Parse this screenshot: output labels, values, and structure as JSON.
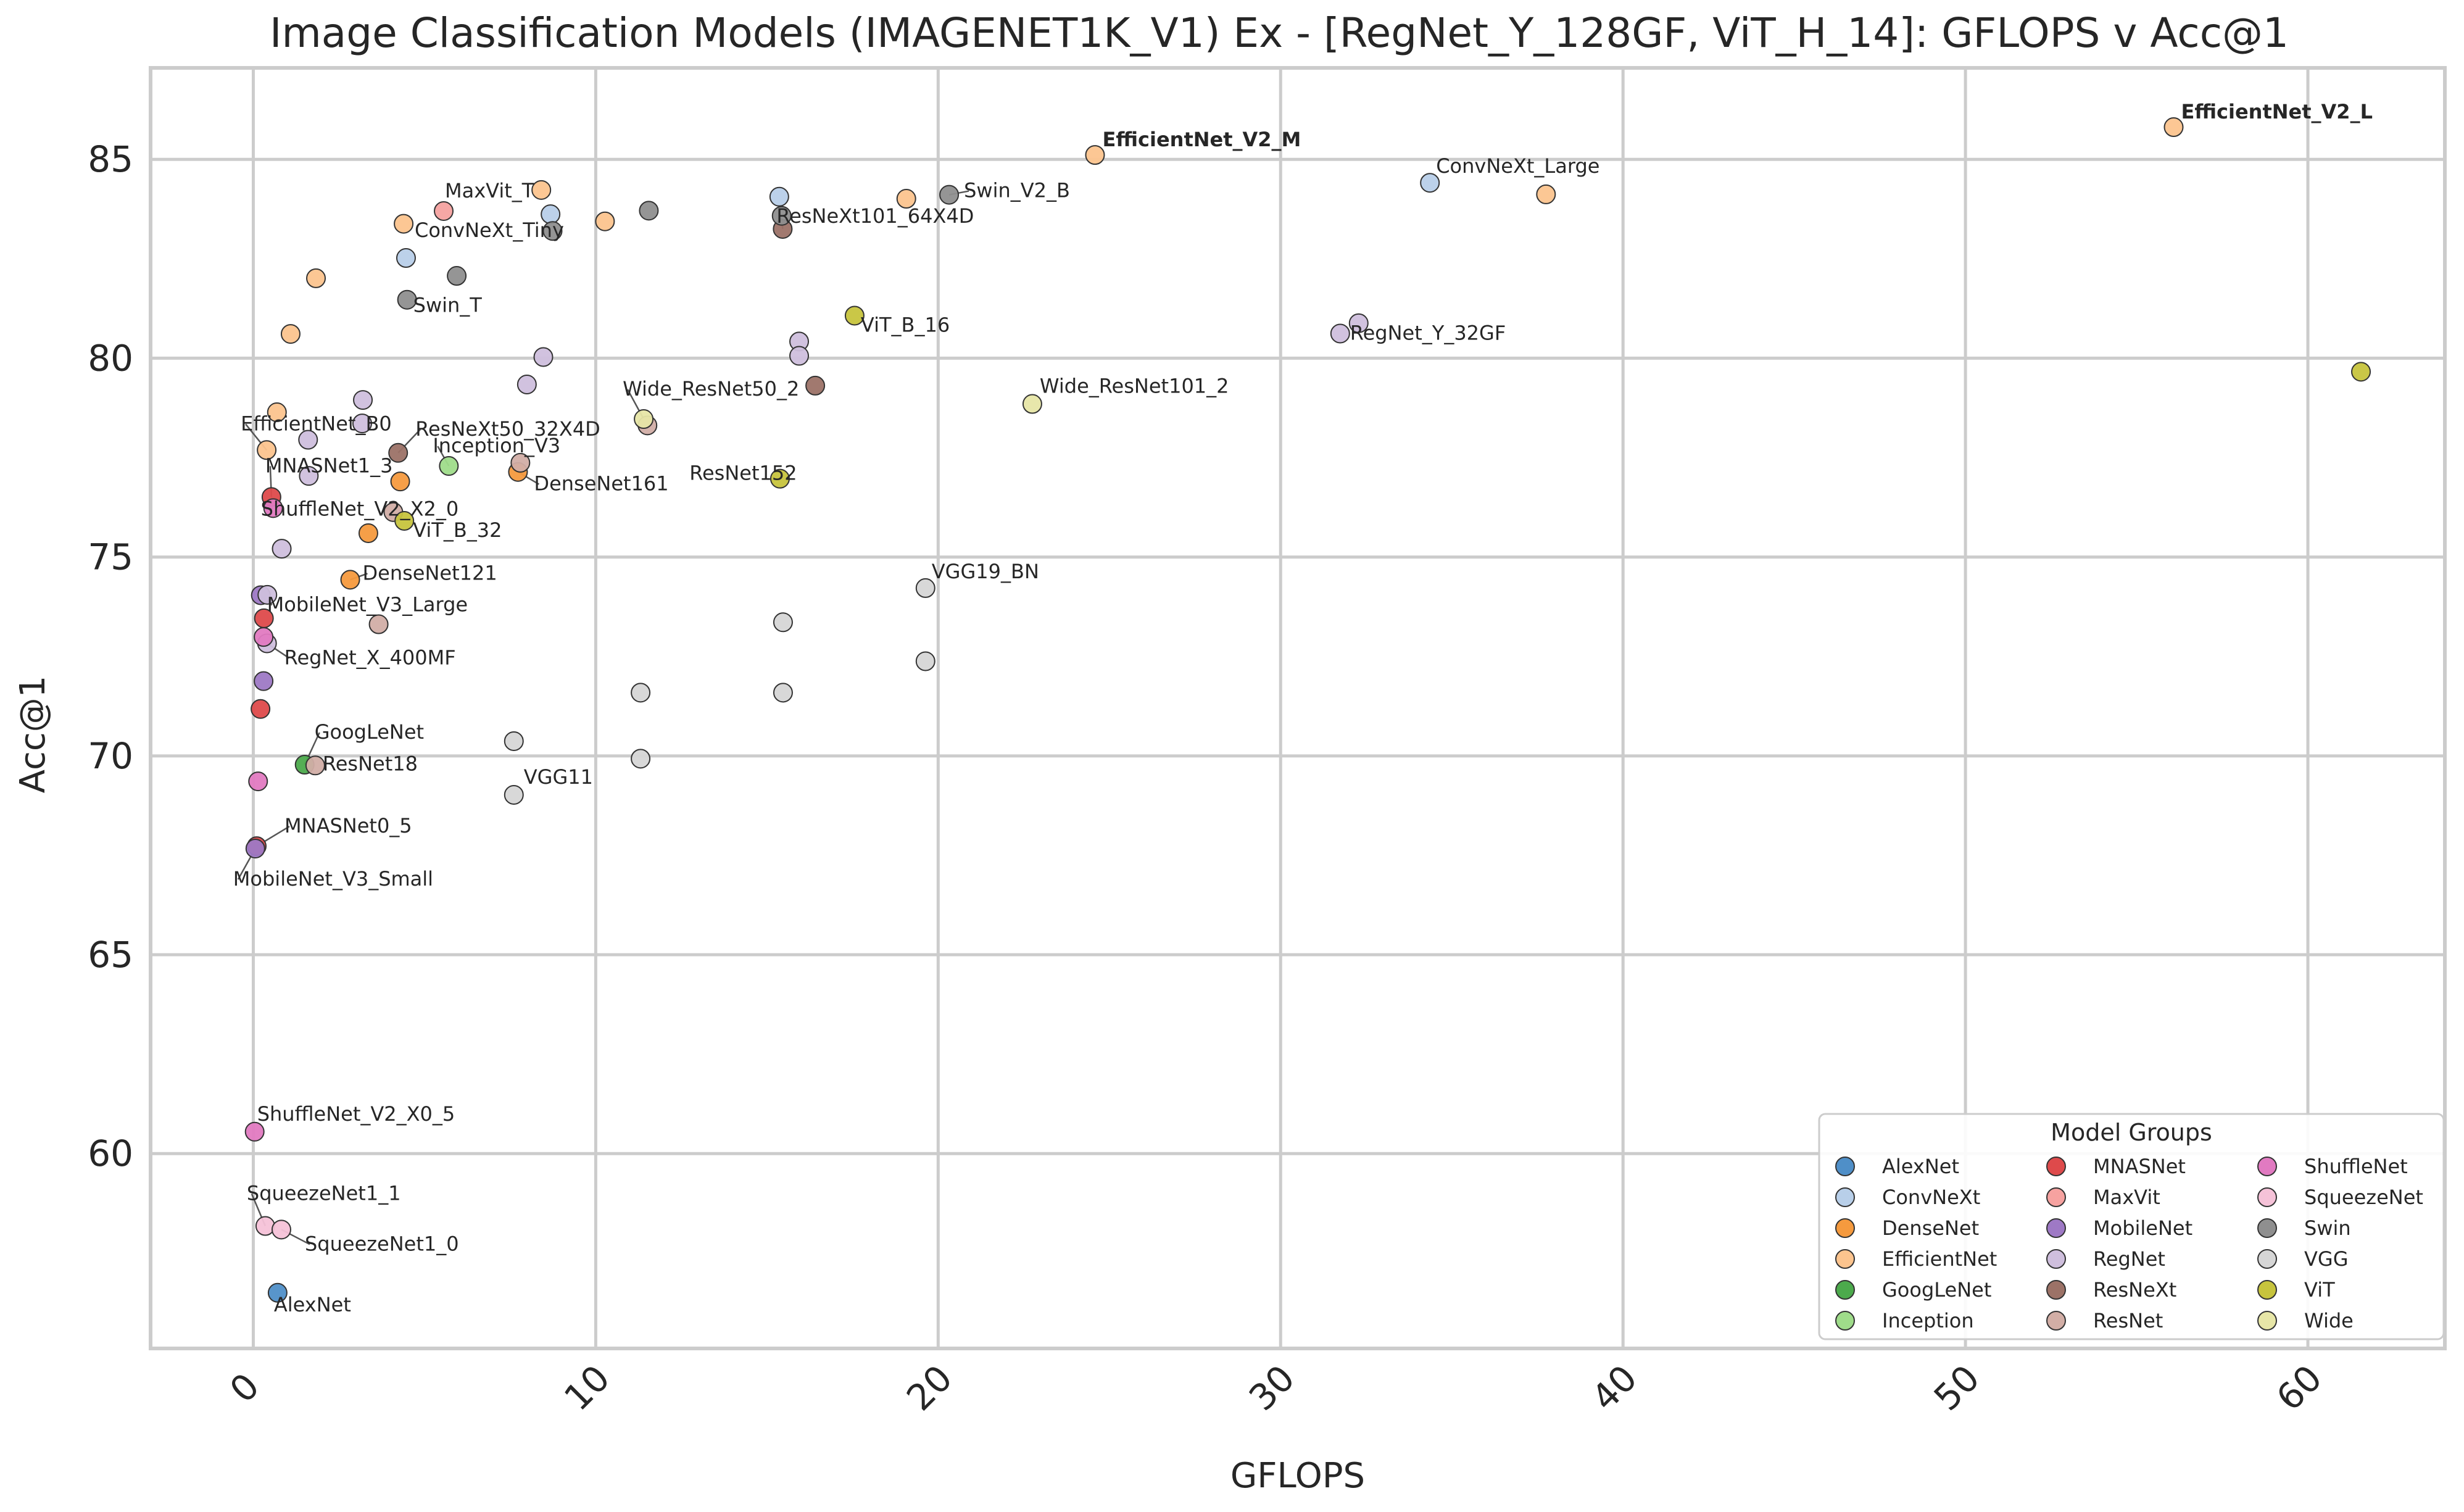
{
  "chart_data": {
    "type": "scatter",
    "title": "Image Classification Models (IMAGENET1K_V1) Ex - [RegNet_Y_128GF, ViT_H_14]: GFLOPS v Acc@1",
    "xlabel": "GFLOPS",
    "ylabel": "Acc@1",
    "xlim": [
      -3,
      64
    ],
    "ylim": [
      55.1,
      87.3
    ],
    "x_ticks": [
      "0",
      "10",
      "20",
      "30",
      "40",
      "50",
      "60"
    ],
    "y_ticks": [
      "60",
      "65",
      "70",
      "75",
      "80",
      "85"
    ],
    "grid": true,
    "legend": {
      "title": "Model Groups",
      "placement": "lower-right",
      "entries": [
        "AlexNet",
        "ConvNeXt",
        "DenseNet",
        "EfficientNet",
        "GoogLeNet",
        "Inception",
        "MNASNet",
        "MaxVit",
        "MobileNet",
        "RegNet",
        "ResNeXt",
        "ResNet",
        "ShuffleNet",
        "SqueezeNet",
        "Swin",
        "VGG",
        "ViT",
        "Wide"
      ]
    },
    "group_colors": {
      "AlexNet": "#4f8fc8",
      "ConvNeXt": "#b8cfe9",
      "DenseNet": "#f59a3e",
      "EfficientNet": "#fcc48e",
      "GoogLeNet": "#4caa4c",
      "Inception": "#9fdc8a",
      "MNASNet": "#de4a4b",
      "MaxVit": "#f6a2a0",
      "MobileNet": "#9e79c5",
      "RegNet": "#cfbfdd",
      "ResNeXt": "#9c7267",
      "ResNet": "#d2aea6",
      "ShuffleNet": "#e17ac1",
      "SqueezeNet": "#f5c2d8",
      "Swin": "#8f8f8f",
      "VGG": "#d6d6d6",
      "ViT": "#c7c43d",
      "Wide": "#e7e6a7"
    },
    "points": [
      {
        "group": "AlexNet",
        "x": 0.71,
        "y": 56.5,
        "label": "AlexNet"
      },
      {
        "group": "ConvNeXt",
        "x": 4.46,
        "y": 82.52,
        "label": "ConvNeXt_Tiny"
      },
      {
        "group": "ConvNeXt",
        "x": 8.68,
        "y": 83.62,
        "label": ""
      },
      {
        "group": "ConvNeXt",
        "x": 15.36,
        "y": 84.06,
        "label": ""
      },
      {
        "group": "ConvNeXt",
        "x": 34.36,
        "y": 84.41,
        "label": "ConvNeXt_Large"
      },
      {
        "group": "DenseNet",
        "x": 2.83,
        "y": 74.43,
        "label": "DenseNet121"
      },
      {
        "group": "DenseNet",
        "x": 3.36,
        "y": 75.6,
        "label": ""
      },
      {
        "group": "DenseNet",
        "x": 4.29,
        "y": 76.9,
        "label": ""
      },
      {
        "group": "DenseNet",
        "x": 7.73,
        "y": 77.14,
        "label": "DenseNet161"
      },
      {
        "group": "EfficientNet",
        "x": 0.39,
        "y": 77.69,
        "label": "EfficientNet_B0"
      },
      {
        "group": "EfficientNet",
        "x": 0.69,
        "y": 78.64,
        "label": ""
      },
      {
        "group": "EfficientNet",
        "x": 1.09,
        "y": 80.61,
        "label": ""
      },
      {
        "group": "EfficientNet",
        "x": 1.83,
        "y": 82.01,
        "label": ""
      },
      {
        "group": "EfficientNet",
        "x": 4.39,
        "y": 83.38,
        "label": ""
      },
      {
        "group": "EfficientNet",
        "x": 10.27,
        "y": 83.44,
        "label": ""
      },
      {
        "group": "EfficientNet",
        "x": 8.41,
        "y": 84.23,
        "label": ""
      },
      {
        "group": "EfficientNet",
        "x": 19.07,
        "y": 84.01,
        "label": ""
      },
      {
        "group": "EfficientNet",
        "x": 24.58,
        "y": 85.11,
        "label": "EfficientNet_V2_M",
        "bold": true
      },
      {
        "group": "EfficientNet",
        "x": 37.75,
        "y": 84.12,
        "label": ""
      },
      {
        "group": "EfficientNet",
        "x": 56.08,
        "y": 85.81,
        "label": "EfficientNet_V2_L",
        "bold": true
      },
      {
        "group": "GoogLeNet",
        "x": 1.5,
        "y": 69.78,
        "label": "GoogLeNet"
      },
      {
        "group": "Inception",
        "x": 5.71,
        "y": 77.29,
        "label": "Inception_V3"
      },
      {
        "group": "MNASNet",
        "x": 0.1,
        "y": 67.73,
        "label": "MNASNet0_5"
      },
      {
        "group": "MNASNet",
        "x": 0.21,
        "y": 71.18,
        "label": ""
      },
      {
        "group": "MNASNet",
        "x": 0.31,
        "y": 73.46,
        "label": ""
      },
      {
        "group": "MNASNet",
        "x": 0.53,
        "y": 76.51,
        "label": "MNASNet1_3"
      },
      {
        "group": "MaxVit",
        "x": 5.56,
        "y": 83.7,
        "label": "MaxVit_T"
      },
      {
        "group": "MobileNet",
        "x": 0.06,
        "y": 67.67,
        "label": "MobileNet_V3_Small"
      },
      {
        "group": "MobileNet",
        "x": 0.22,
        "y": 74.04,
        "label": "MobileNet_V3_Large"
      },
      {
        "group": "MobileNet",
        "x": 0.3,
        "y": 71.88,
        "label": ""
      },
      {
        "group": "RegNet",
        "x": 0.41,
        "y": 74.05,
        "label": ""
      },
      {
        "group": "RegNet",
        "x": 0.4,
        "y": 72.83,
        "label": "RegNet_X_400MF"
      },
      {
        "group": "RegNet",
        "x": 0.83,
        "y": 75.21,
        "label": ""
      },
      {
        "group": "RegNet",
        "x": 1.6,
        "y": 77.95,
        "label": ""
      },
      {
        "group": "RegNet",
        "x": 1.62,
        "y": 77.04,
        "label": ""
      },
      {
        "group": "RegNet",
        "x": 3.18,
        "y": 78.36,
        "label": ""
      },
      {
        "group": "RegNet",
        "x": 3.2,
        "y": 78.95,
        "label": ""
      },
      {
        "group": "RegNet",
        "x": 8.47,
        "y": 80.03,
        "label": ""
      },
      {
        "group": "RegNet",
        "x": 7.99,
        "y": 79.34,
        "label": ""
      },
      {
        "group": "RegNet",
        "x": 15.94,
        "y": 80.42,
        "label": ""
      },
      {
        "group": "RegNet",
        "x": 15.94,
        "y": 80.06,
        "label": ""
      },
      {
        "group": "RegNet",
        "x": 31.74,
        "y": 80.62,
        "label": "RegNet_Y_32GF"
      },
      {
        "group": "RegNet",
        "x": 32.28,
        "y": 80.88,
        "label": ""
      },
      {
        "group": "ResNeXt",
        "x": 4.23,
        "y": 77.62,
        "label": "ResNeXt50_32X4D"
      },
      {
        "group": "ResNeXt",
        "x": 16.41,
        "y": 79.31,
        "label": ""
      },
      {
        "group": "ResNeXt",
        "x": 15.46,
        "y": 83.25,
        "label": "ResNeXt101_64X4D"
      },
      {
        "group": "ResNet",
        "x": 1.81,
        "y": 69.76,
        "label": "ResNet18"
      },
      {
        "group": "ResNet",
        "x": 3.66,
        "y": 73.31,
        "label": ""
      },
      {
        "group": "ResNet",
        "x": 4.09,
        "y": 76.13,
        "label": ""
      },
      {
        "group": "ResNet",
        "x": 7.8,
        "y": 77.37,
        "label": ""
      },
      {
        "group": "ResNet",
        "x": 11.51,
        "y": 78.31,
        "label": "ResNet152"
      },
      {
        "group": "ShuffleNet",
        "x": 0.04,
        "y": 60.55,
        "label": "ShuffleNet_V2_X0_5"
      },
      {
        "group": "ShuffleNet",
        "x": 0.14,
        "y": 69.36,
        "label": ""
      },
      {
        "group": "ShuffleNet",
        "x": 0.3,
        "y": 72.99,
        "label": ""
      },
      {
        "group": "ShuffleNet",
        "x": 0.58,
        "y": 76.23,
        "label": "ShuffleNet_V2_X2_0"
      },
      {
        "group": "SqueezeNet",
        "x": 0.35,
        "y": 58.18,
        "label": "SqueezeNet1_1"
      },
      {
        "group": "SqueezeNet",
        "x": 0.82,
        "y": 58.09,
        "label": "SqueezeNet1_0"
      },
      {
        "group": "Swin",
        "x": 4.49,
        "y": 81.47,
        "label": "Swin_T"
      },
      {
        "group": "Swin",
        "x": 8.74,
        "y": 83.2,
        "label": ""
      },
      {
        "group": "Swin",
        "x": 5.94,
        "y": 82.07,
        "label": ""
      },
      {
        "group": "Swin",
        "x": 11.55,
        "y": 83.71,
        "label": ""
      },
      {
        "group": "Swin",
        "x": 15.43,
        "y": 83.58,
        "label": ""
      },
      {
        "group": "Swin",
        "x": 20.32,
        "y": 84.11,
        "label": "Swin_V2_B"
      },
      {
        "group": "VGG",
        "x": 7.61,
        "y": 69.02,
        "label": "VGG11"
      },
      {
        "group": "VGG",
        "x": 7.61,
        "y": 70.37,
        "label": ""
      },
      {
        "group": "VGG",
        "x": 11.31,
        "y": 69.93,
        "label": ""
      },
      {
        "group": "VGG",
        "x": 11.31,
        "y": 71.59,
        "label": ""
      },
      {
        "group": "VGG",
        "x": 15.47,
        "y": 71.59,
        "label": ""
      },
      {
        "group": "VGG",
        "x": 15.47,
        "y": 73.36,
        "label": ""
      },
      {
        "group": "VGG",
        "x": 19.63,
        "y": 72.38,
        "label": ""
      },
      {
        "group": "VGG",
        "x": 19.63,
        "y": 74.22,
        "label": "VGG19_BN"
      },
      {
        "group": "ViT",
        "x": 4.41,
        "y": 75.91,
        "label": "ViT_B_32"
      },
      {
        "group": "ViT",
        "x": 15.38,
        "y": 76.97,
        "label": ""
      },
      {
        "group": "ViT",
        "x": 17.56,
        "y": 81.07,
        "label": "ViT_B_16"
      },
      {
        "group": "ViT",
        "x": 61.55,
        "y": 79.66,
        "label": ""
      },
      {
        "group": "Wide",
        "x": 11.4,
        "y": 78.47,
        "label": "Wide_ResNet50_2"
      },
      {
        "group": "Wide",
        "x": 22.75,
        "y": 78.85,
        "label": "Wide_ResNet101_2"
      }
    ]
  }
}
